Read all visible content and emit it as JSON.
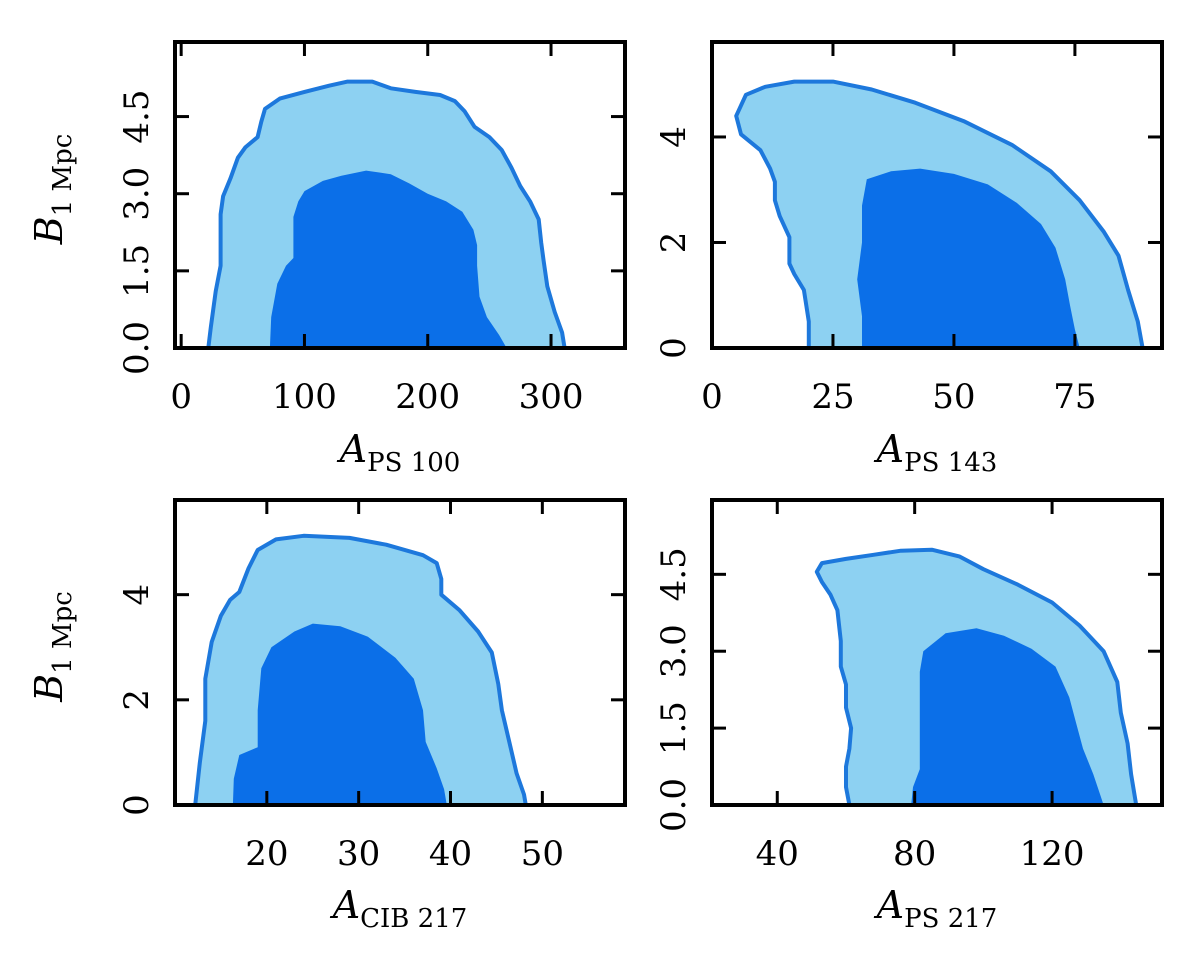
{
  "colors": {
    "inner_fill": "#0b6fe8",
    "outer_fill": "#8dd1f2",
    "contour_line": "#1d78dc",
    "frame": "#000000"
  },
  "chart_data": [
    {
      "type": "contour",
      "xlabel_main": "A",
      "xlabel_sub": "PS 100",
      "ylabel_main": "B",
      "ylabel_sub": "1 Mpc",
      "xlim": [
        -5,
        360
      ],
      "ylim": [
        0,
        5.95
      ],
      "xticks": [
        0,
        100,
        200,
        300
      ],
      "xtick_labels": [
        "0",
        "100",
        "200",
        "300"
      ],
      "yticks": [
        0,
        1.5,
        3,
        4.5
      ],
      "ytick_labels": [
        "0.0",
        "1.5",
        "3.0",
        "4.5"
      ],
      "outer_contour": [
        [
          22,
          0
        ],
        [
          24,
          0.4
        ],
        [
          28,
          1.1
        ],
        [
          32,
          1.6
        ],
        [
          32,
          2.6
        ],
        [
          34,
          2.95
        ],
        [
          40,
          3.3
        ],
        [
          46,
          3.7
        ],
        [
          52,
          3.9
        ],
        [
          62,
          4.1
        ],
        [
          65,
          4.4
        ],
        [
          68,
          4.65
        ],
        [
          80,
          4.85
        ],
        [
          100,
          4.98
        ],
        [
          120,
          5.1
        ],
        [
          135,
          5.18
        ],
        [
          155,
          5.18
        ],
        [
          170,
          5.05
        ],
        [
          190,
          4.98
        ],
        [
          210,
          4.92
        ],
        [
          222,
          4.8
        ],
        [
          230,
          4.6
        ],
        [
          238,
          4.3
        ],
        [
          250,
          4.1
        ],
        [
          260,
          3.85
        ],
        [
          268,
          3.5
        ],
        [
          275,
          3.15
        ],
        [
          283,
          2.85
        ],
        [
          290,
          2.5
        ],
        [
          292,
          2.05
        ],
        [
          294,
          1.7
        ],
        [
          297,
          1.2
        ],
        [
          303,
          0.7
        ],
        [
          309,
          0.3
        ],
        [
          311,
          0
        ]
      ],
      "inner_contour": [
        [
          72,
          0
        ],
        [
          73,
          0.6
        ],
        [
          78,
          1.25
        ],
        [
          85,
          1.6
        ],
        [
          91,
          1.75
        ],
        [
          91,
          2.55
        ],
        [
          95,
          2.85
        ],
        [
          100,
          3.05
        ],
        [
          115,
          3.25
        ],
        [
          130,
          3.35
        ],
        [
          150,
          3.45
        ],
        [
          170,
          3.38
        ],
        [
          185,
          3.2
        ],
        [
          200,
          3.0
        ],
        [
          215,
          2.85
        ],
        [
          228,
          2.65
        ],
        [
          237,
          2.3
        ],
        [
          240,
          2.0
        ],
        [
          240,
          1.6
        ],
        [
          242,
          1.0
        ],
        [
          248,
          0.6
        ],
        [
          258,
          0.25
        ],
        [
          264,
          0
        ]
      ]
    },
    {
      "type": "contour",
      "xlabel_main": "A",
      "xlabel_sub": "PS 143",
      "ylabel_main": "",
      "ylabel_sub": "",
      "xlim": [
        0,
        93
      ],
      "ylim": [
        0,
        5.8
      ],
      "xticks": [
        0,
        25,
        50,
        75
      ],
      "xtick_labels": [
        "0",
        "25",
        "50",
        "75"
      ],
      "yticks": [
        0,
        2,
        4
      ],
      "ytick_labels": [
        "0",
        "2",
        "4"
      ],
      "outer_contour": [
        [
          20,
          0
        ],
        [
          20,
          0.5
        ],
        [
          19,
          1.1
        ],
        [
          17,
          1.4
        ],
        [
          16,
          1.6
        ],
        [
          16,
          2.1
        ],
        [
          14,
          2.5
        ],
        [
          13,
          2.8
        ],
        [
          13,
          3.15
        ],
        [
          12,
          3.4
        ],
        [
          10,
          3.75
        ],
        [
          6,
          4.05
        ],
        [
          5,
          4.4
        ],
        [
          7,
          4.8
        ],
        [
          11,
          4.95
        ],
        [
          17,
          5.05
        ],
        [
          25,
          5.05
        ],
        [
          33,
          4.9
        ],
        [
          42,
          4.65
        ],
        [
          52,
          4.3
        ],
        [
          62,
          3.85
        ],
        [
          70,
          3.35
        ],
        [
          76,
          2.8
        ],
        [
          81,
          2.2
        ],
        [
          84,
          1.75
        ],
        [
          86,
          1.1
        ],
        [
          88,
          0.5
        ],
        [
          89,
          0
        ]
      ],
      "inner_contour": [
        [
          31,
          0
        ],
        [
          31,
          0.6
        ],
        [
          30,
          1.3
        ],
        [
          31,
          2.0
        ],
        [
          31,
          2.7
        ],
        [
          32,
          3.2
        ],
        [
          37,
          3.35
        ],
        [
          43,
          3.4
        ],
        [
          50,
          3.3
        ],
        [
          57,
          3.1
        ],
        [
          63,
          2.75
        ],
        [
          68,
          2.35
        ],
        [
          71,
          1.9
        ],
        [
          73,
          1.3
        ],
        [
          74,
          0.8
        ],
        [
          75,
          0.35
        ],
        [
          76,
          0
        ]
      ]
    },
    {
      "type": "contour",
      "xlabel_main": "A",
      "xlabel_sub": "CIB 217",
      "ylabel_main": "B",
      "ylabel_sub": "1 Mpc",
      "xlim": [
        10,
        59
      ],
      "ylim": [
        0,
        5.8
      ],
      "xticks": [
        20,
        30,
        40,
        50
      ],
      "xtick_labels": [
        "20",
        "30",
        "40",
        "50"
      ],
      "yticks": [
        0,
        2,
        4
      ],
      "ytick_labels": [
        "0",
        "2",
        "4"
      ],
      "outer_contour": [
        [
          12.2,
          0
        ],
        [
          12.7,
          0.8
        ],
        [
          13.3,
          1.6
        ],
        [
          13.3,
          2.4
        ],
        [
          14,
          3.1
        ],
        [
          15,
          3.6
        ],
        [
          16,
          3.9
        ],
        [
          17,
          4.05
        ],
        [
          18,
          4.5
        ],
        [
          19,
          4.85
        ],
        [
          21,
          5.05
        ],
        [
          24,
          5.12
        ],
        [
          29,
          5.08
        ],
        [
          33,
          4.95
        ],
        [
          37,
          4.75
        ],
        [
          38.5,
          4.6
        ],
        [
          39,
          4.3
        ],
        [
          39,
          4.0
        ],
        [
          41,
          3.7
        ],
        [
          43,
          3.3
        ],
        [
          44.5,
          2.9
        ],
        [
          45.2,
          2.3
        ],
        [
          45.6,
          1.8
        ],
        [
          46.4,
          1.2
        ],
        [
          47.2,
          0.6
        ],
        [
          48,
          0.2
        ],
        [
          48.2,
          0
        ]
      ],
      "inner_contour": [
        [
          16.3,
          0
        ],
        [
          16.4,
          0.5
        ],
        [
          17,
          0.95
        ],
        [
          19,
          1.1
        ],
        [
          19,
          1.8
        ],
        [
          19.4,
          2.6
        ],
        [
          20.5,
          3.0
        ],
        [
          23,
          3.3
        ],
        [
          25,
          3.45
        ],
        [
          28,
          3.4
        ],
        [
          31,
          3.2
        ],
        [
          34,
          2.8
        ],
        [
          36,
          2.4
        ],
        [
          37,
          1.8
        ],
        [
          37.3,
          1.2
        ],
        [
          38.5,
          0.7
        ],
        [
          39.3,
          0.3
        ],
        [
          39.6,
          0
        ]
      ]
    },
    {
      "type": "contour",
      "xlabel_main": "A",
      "xlabel_sub": "PS 217",
      "ylabel_main": "",
      "ylabel_sub": "",
      "xlim": [
        21,
        152
      ],
      "ylim": [
        0,
        5.95
      ],
      "xticks": [
        40,
        80,
        120
      ],
      "xtick_labels": [
        "40",
        "80",
        "120"
      ],
      "yticks": [
        0,
        1.5,
        3,
        4.5
      ],
      "ytick_labels": [
        "0.0",
        "1.5",
        "3.0",
        "4.5"
      ],
      "outer_contour": [
        [
          61,
          0
        ],
        [
          60,
          0.35
        ],
        [
          60,
          0.75
        ],
        [
          61,
          1.1
        ],
        [
          61.5,
          1.5
        ],
        [
          60,
          1.9
        ],
        [
          60,
          2.35
        ],
        [
          58.5,
          2.7
        ],
        [
          58.5,
          3.2
        ],
        [
          58,
          3.5
        ],
        [
          57.5,
          3.8
        ],
        [
          55.5,
          4.1
        ],
        [
          53,
          4.35
        ],
        [
          51.5,
          4.55
        ],
        [
          53,
          4.72
        ],
        [
          60,
          4.8
        ],
        [
          68,
          4.88
        ],
        [
          76,
          4.96
        ],
        [
          85,
          4.98
        ],
        [
          93,
          4.85
        ],
        [
          100,
          4.6
        ],
        [
          110,
          4.3
        ],
        [
          120,
          3.95
        ],
        [
          128,
          3.5
        ],
        [
          135,
          3.0
        ],
        [
          139,
          2.4
        ],
        [
          140,
          1.8
        ],
        [
          142,
          1.2
        ],
        [
          143,
          0.6
        ],
        [
          144.5,
          0
        ]
      ],
      "inner_contour": [
        [
          79,
          0
        ],
        [
          79.5,
          0.35
        ],
        [
          81.5,
          0.7
        ],
        [
          81.5,
          2.6
        ],
        [
          82.5,
          3.0
        ],
        [
          89,
          3.35
        ],
        [
          98,
          3.45
        ],
        [
          106,
          3.3
        ],
        [
          114,
          3.05
        ],
        [
          121,
          2.7
        ],
        [
          125,
          2.1
        ],
        [
          127,
          1.6
        ],
        [
          129,
          1.1
        ],
        [
          132,
          0.6
        ],
        [
          134,
          0.2
        ],
        [
          135,
          0
        ]
      ]
    }
  ]
}
